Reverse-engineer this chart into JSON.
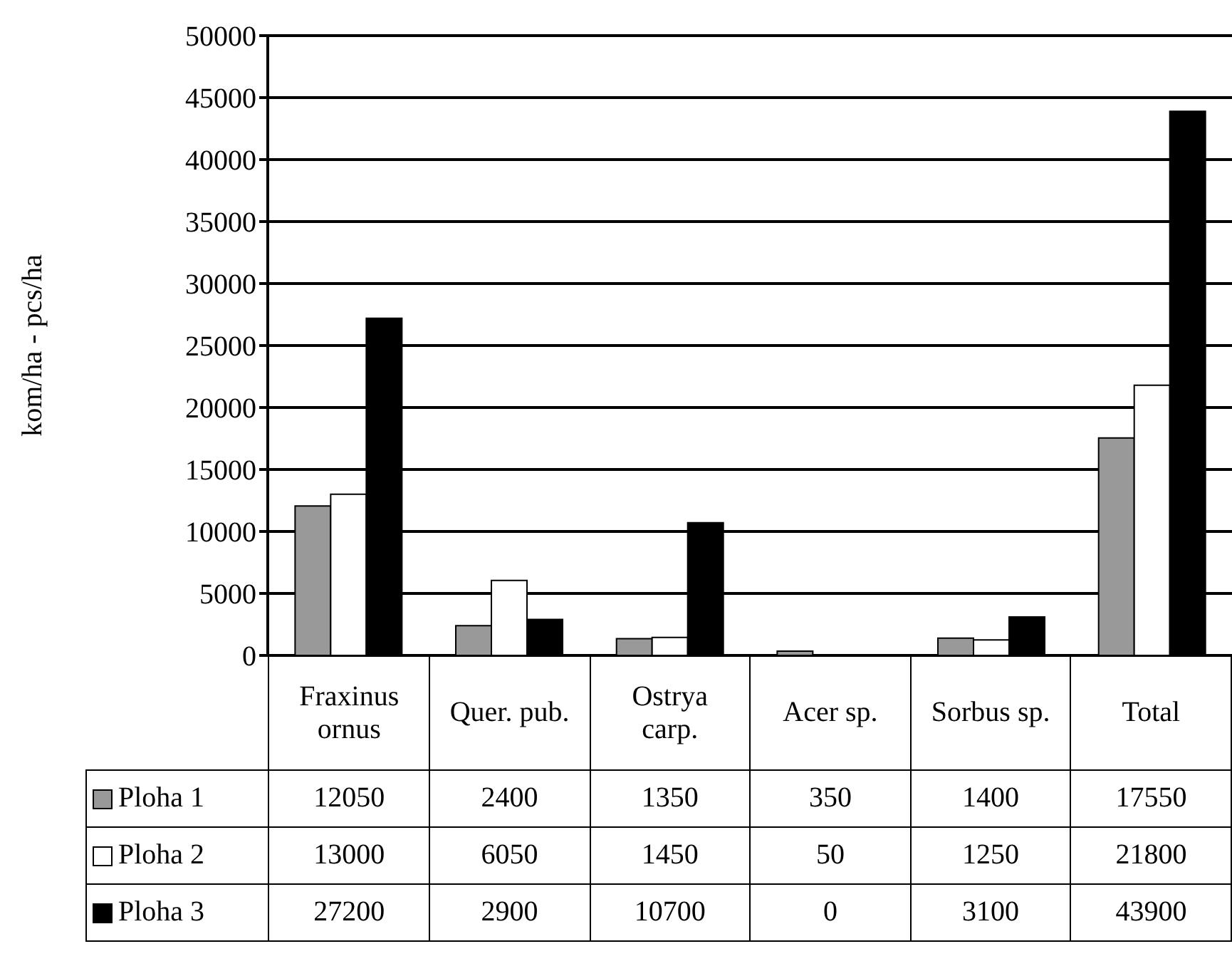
{
  "chart_data": {
    "type": "bar",
    "ylabel": "kom/ha - pcs/ha",
    "categories": [
      "Fraxinus ornus",
      "Quer. pub.",
      "Ostrya carp.",
      "Acer sp.",
      "Sorbus sp.",
      "Total"
    ],
    "series": [
      {
        "name": "Ploha 1",
        "color": "#999999",
        "values": [
          12050,
          2400,
          1350,
          350,
          1400,
          17550
        ]
      },
      {
        "name": "Ploha 2",
        "color": "#ffffff",
        "values": [
          13000,
          6050,
          1450,
          50,
          1250,
          21800
        ]
      },
      {
        "name": "Ploha 3",
        "color": "#000000",
        "values": [
          27200,
          2900,
          10700,
          0,
          3100,
          43900
        ]
      }
    ],
    "ylim": [
      0,
      50000
    ],
    "yticks": [
      0,
      5000,
      10000,
      15000,
      20000,
      25000,
      30000,
      35000,
      40000,
      45000,
      50000
    ],
    "grid": "y",
    "legend": "bottom",
    "data_labels": true
  }
}
